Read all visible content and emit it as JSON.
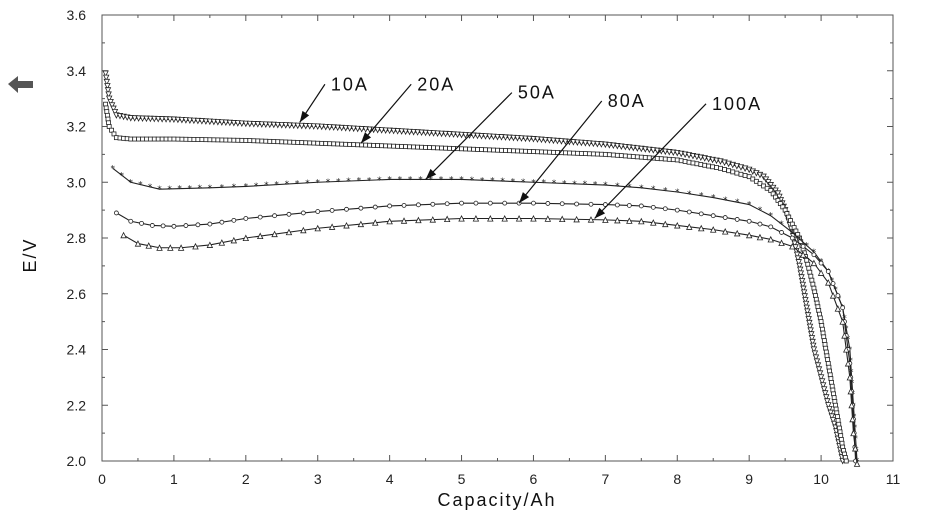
{
  "chart_data": {
    "type": "line",
    "title": "",
    "xlabel": "Capacity/Ah",
    "ylabel": "E/V",
    "xlim": [
      0,
      11
    ],
    "ylim": [
      2.0,
      3.6
    ],
    "xticks": [
      "0",
      "1",
      "2",
      "3",
      "4",
      "5",
      "6",
      "7",
      "8",
      "9",
      "10",
      "11"
    ],
    "yticks": [
      "2.0",
      "2.2",
      "2.4",
      "2.6",
      "2.8",
      "3.0",
      "3.2",
      "3.4",
      "3.6"
    ],
    "grid": false,
    "legend": "none",
    "series": [
      {
        "name": "10A",
        "marker": "triangle-down",
        "points": [
          [
            0.05,
            3.39
          ],
          [
            0.1,
            3.3
          ],
          [
            0.2,
            3.24
          ],
          [
            0.4,
            3.23
          ],
          [
            1,
            3.225
          ],
          [
            2,
            3.21
          ],
          [
            3,
            3.2
          ],
          [
            4,
            3.185
          ],
          [
            5,
            3.17
          ],
          [
            6,
            3.155
          ],
          [
            7,
            3.135
          ],
          [
            8,
            3.105
          ],
          [
            8.6,
            3.075
          ],
          [
            9,
            3.045
          ],
          [
            9.2,
            3.02
          ],
          [
            9.4,
            2.96
          ],
          [
            9.5,
            2.9
          ],
          [
            9.6,
            2.82
          ],
          [
            9.7,
            2.7
          ],
          [
            9.8,
            2.55
          ],
          [
            9.9,
            2.4
          ],
          [
            10.0,
            2.3
          ],
          [
            10.1,
            2.2
          ],
          [
            10.2,
            2.12
          ],
          [
            10.3,
            2.0
          ]
        ]
      },
      {
        "name": "20A",
        "marker": "square",
        "points": [
          [
            0.05,
            3.28
          ],
          [
            0.1,
            3.2
          ],
          [
            0.2,
            3.16
          ],
          [
            0.4,
            3.155
          ],
          [
            1,
            3.155
          ],
          [
            2,
            3.15
          ],
          [
            3,
            3.14
          ],
          [
            4,
            3.13
          ],
          [
            5,
            3.12
          ],
          [
            6,
            3.11
          ],
          [
            7,
            3.1
          ],
          [
            8,
            3.08
          ],
          [
            8.6,
            3.05
          ],
          [
            9,
            3.02
          ],
          [
            9.3,
            2.97
          ],
          [
            9.5,
            2.9
          ],
          [
            9.7,
            2.8
          ],
          [
            9.8,
            2.72
          ],
          [
            9.9,
            2.62
          ],
          [
            10.0,
            2.5
          ],
          [
            10.1,
            2.35
          ],
          [
            10.2,
            2.2
          ],
          [
            10.3,
            2.05
          ],
          [
            10.35,
            2.0
          ]
        ]
      },
      {
        "name": "50A",
        "marker": "star",
        "points": [
          [
            0.15,
            3.05
          ],
          [
            0.4,
            3.0
          ],
          [
            0.8,
            2.975
          ],
          [
            1.5,
            2.98
          ],
          [
            2,
            2.985
          ],
          [
            3,
            3.0
          ],
          [
            4,
            3.01
          ],
          [
            5,
            3.01
          ],
          [
            6,
            3.0
          ],
          [
            7,
            2.99
          ],
          [
            7.5,
            2.98
          ],
          [
            8,
            2.965
          ],
          [
            8.5,
            2.945
          ],
          [
            9,
            2.92
          ],
          [
            9.3,
            2.88
          ],
          [
            9.6,
            2.82
          ],
          [
            9.9,
            2.75
          ],
          [
            10.1,
            2.68
          ],
          [
            10.3,
            2.55
          ],
          [
            10.4,
            2.4
          ],
          [
            10.45,
            2.2
          ],
          [
            10.5,
            2.0
          ]
        ]
      },
      {
        "name": "80A",
        "marker": "circle",
        "points": [
          [
            0.2,
            2.89
          ],
          [
            0.4,
            2.86
          ],
          [
            0.7,
            2.845
          ],
          [
            1,
            2.842
          ],
          [
            1.5,
            2.85
          ],
          [
            2,
            2.87
          ],
          [
            3,
            2.895
          ],
          [
            4,
            2.915
          ],
          [
            5,
            2.925
          ],
          [
            6,
            2.925
          ],
          [
            7,
            2.92
          ],
          [
            7.5,
            2.915
          ],
          [
            8,
            2.9
          ],
          [
            8.5,
            2.88
          ],
          [
            9,
            2.86
          ],
          [
            9.3,
            2.84
          ],
          [
            9.6,
            2.8
          ],
          [
            9.9,
            2.74
          ],
          [
            10.1,
            2.68
          ],
          [
            10.3,
            2.55
          ],
          [
            10.4,
            2.35
          ],
          [
            10.45,
            2.15
          ],
          [
            10.48,
            2.0
          ]
        ]
      },
      {
        "name": "100A",
        "marker": "triangle-up",
        "points": [
          [
            0.3,
            2.81
          ],
          [
            0.5,
            2.78
          ],
          [
            0.8,
            2.765
          ],
          [
            1.1,
            2.765
          ],
          [
            1.5,
            2.775
          ],
          [
            2,
            2.8
          ],
          [
            3,
            2.835
          ],
          [
            4,
            2.86
          ],
          [
            5,
            2.87
          ],
          [
            6,
            2.87
          ],
          [
            7,
            2.865
          ],
          [
            7.5,
            2.86
          ],
          [
            8,
            2.845
          ],
          [
            8.5,
            2.83
          ],
          [
            9,
            2.81
          ],
          [
            9.3,
            2.795
          ],
          [
            9.6,
            2.77
          ],
          [
            9.9,
            2.71
          ],
          [
            10.1,
            2.64
          ],
          [
            10.3,
            2.5
          ],
          [
            10.4,
            2.3
          ],
          [
            10.45,
            2.1
          ],
          [
            10.5,
            1.99
          ]
        ]
      }
    ],
    "annotations": [
      {
        "text": "10A",
        "label_at": [
          3.1,
          3.33
        ],
        "arrow_to": [
          2.75,
          3.215
        ]
      },
      {
        "text": "20A",
        "label_at": [
          4.3,
          3.33
        ],
        "arrow_to": [
          3.6,
          3.14
        ]
      },
      {
        "text": "50A",
        "label_at": [
          5.7,
          3.3
        ],
        "arrow_to": [
          4.5,
          3.01
        ]
      },
      {
        "text": "80A",
        "label_at": [
          6.95,
          3.27
        ],
        "arrow_to": [
          5.8,
          2.925
        ]
      },
      {
        "text": "100A",
        "label_at": [
          8.4,
          3.26
        ],
        "arrow_to": [
          6.85,
          2.87
        ]
      }
    ]
  },
  "page": {
    "side_arrow_icon": "left-arrow-icon"
  }
}
